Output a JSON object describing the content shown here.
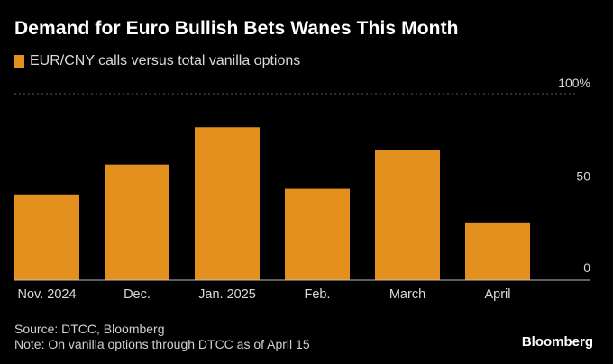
{
  "title": "Demand for Euro Bullish Bets Wanes This Month",
  "legend": {
    "label": "EUR/CNY calls versus total vanilla options"
  },
  "colors": {
    "bar": "#E4901E",
    "background": "#000000",
    "grid": "#5a5a5a"
  },
  "chart_data": {
    "type": "bar",
    "categories": [
      "Nov. 2024",
      "Dec.",
      "Jan. 2025",
      "Feb.",
      "March",
      "April"
    ],
    "series": [
      {
        "name": "EUR/CNY calls versus total vanilla options",
        "values": [
          46,
          62,
          82,
          49,
          70,
          31
        ]
      }
    ],
    "ylim": [
      0,
      100
    ],
    "yticks": [
      0,
      50,
      100
    ],
    "ytick_labels": [
      "0",
      "50",
      "100%"
    ],
    "yaxis_position": "right",
    "grid": true
  },
  "footer": {
    "source": "Source: DTCC, Bloomberg",
    "note": "Note: On vanilla options through DTCC as of April 15"
  },
  "brand": "Bloomberg"
}
